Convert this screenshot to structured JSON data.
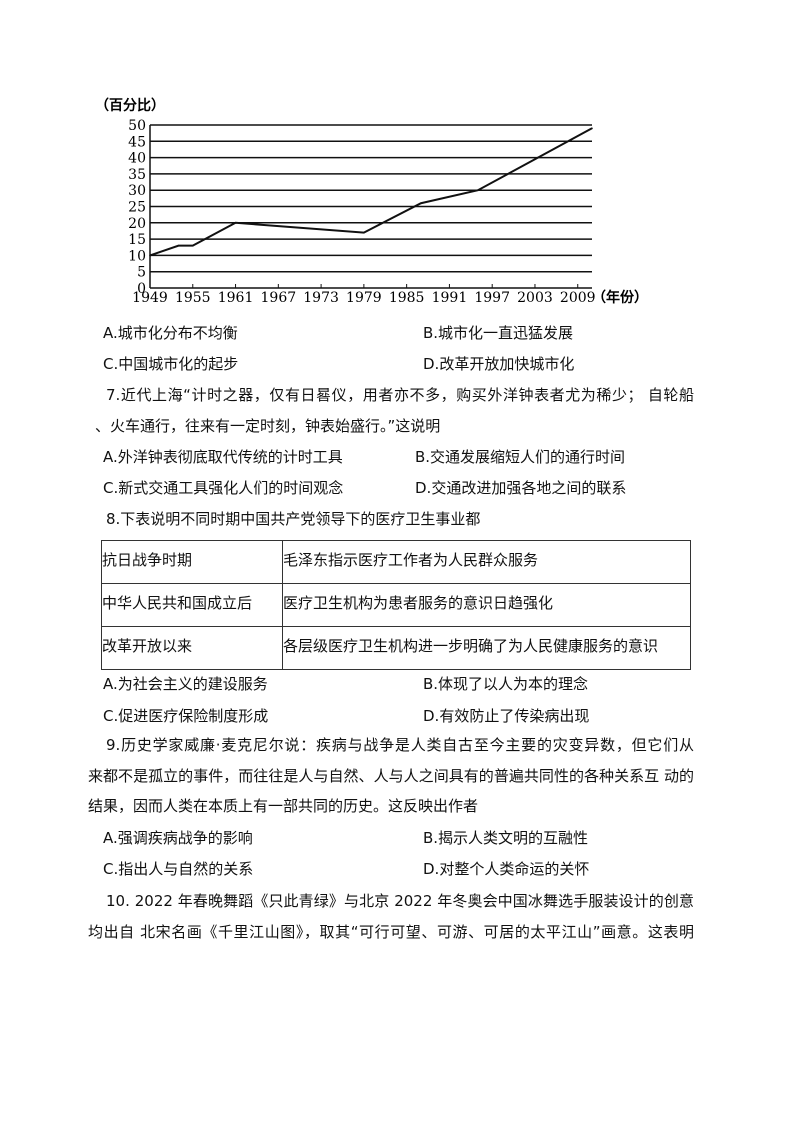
{
  "chart_data": {
    "type": "line",
    "ylabel": "（百分比）",
    "xlabel": "（年份）",
    "x_ticks": [
      "1949",
      "1955",
      "1961",
      "1967",
      "1973",
      "1979",
      "1985",
      "1991",
      "1997",
      "2003",
      "2009"
    ],
    "y_ticks": [
      "0",
      "5",
      "10",
      "15",
      "20",
      "25",
      "30",
      "35",
      "40",
      "45",
      "50"
    ],
    "ylim": [
      0,
      50
    ],
    "xlim": [
      1949,
      2011
    ],
    "grid": "horizontal",
    "x": [
      1949,
      1953,
      1955,
      1961,
      1979,
      1987,
      1995,
      2011
    ],
    "values": [
      10,
      13,
      13,
      20,
      17,
      26,
      30,
      49
    ]
  },
  "q6": {
    "A": "A.城市化分布不均衡",
    "B": "B.城市化一直迅猛发展",
    "C": "C.中国城市化的起步",
    "D": "D.改革开放加快城市化"
  },
  "q7": {
    "line1": "7.近代上海“计时之器，仅有日晷仪，用者亦不多，购买外洋钟表者尤为稀少；  自轮船",
    "line2": "、火车通行，往来有一定时刻，钟表始盛行。”这说明",
    "A": "A.外洋钟表彻底取代传统的计时工具",
    "B": "B.交通发展缩短人们的通行时间",
    "C": "C.新式交通工具强化人们的时间观念",
    "D": "D.交通改进加强各地之间的联系"
  },
  "q8": {
    "stem": "8.下表说明不同时期中国共产党领导下的医疗卫生事业都",
    "table": [
      [
        "抗日战争时期",
        "毛泽东指示医疗工作者为人民群众服务"
      ],
      [
        "中华人民共和国成立后",
        "医疗卫生机构为患者服务的意识日趋强化"
      ],
      [
        "改革开放以来",
        "各层级医疗卫生机构进一步明确了为人民健康服务的意识"
      ]
    ],
    "A": "A.为社会主义的建设服务",
    "B": "B.体现了以人为本的理念",
    "C": "C.促进医疗保险制度形成",
    "D": "D.有效防止了传染病出现"
  },
  "q9": {
    "line1": "9.历史学家威廉·麦克尼尔说：疾病与战争是人类自古至今主要的灾变异数，但它们从",
    "line2": "来都不是孤立的事件，而往往是人与自然、人与人之间具有的普遍共同性的各种关系互 动的",
    "line3": "结果，因而人类在本质上有一部共同的历史。这反映出作者",
    "A": "A.强调疾病战争的影响",
    "B": "B.揭示人类文明的互融性",
    "C": "C.指出人与自然的关系",
    "D": "D.对整个人类命运的关怀"
  },
  "q10": {
    "line1": "10. 2022 年春晚舞蹈《只此青绿》与北京 2022 年冬奥会中国冰舞选手服装设计的创意",
    "line2": "均出自 北宋名画《千里江山图》，取其“可行可望、可游、可居的太平江山”画意。这表明"
  }
}
